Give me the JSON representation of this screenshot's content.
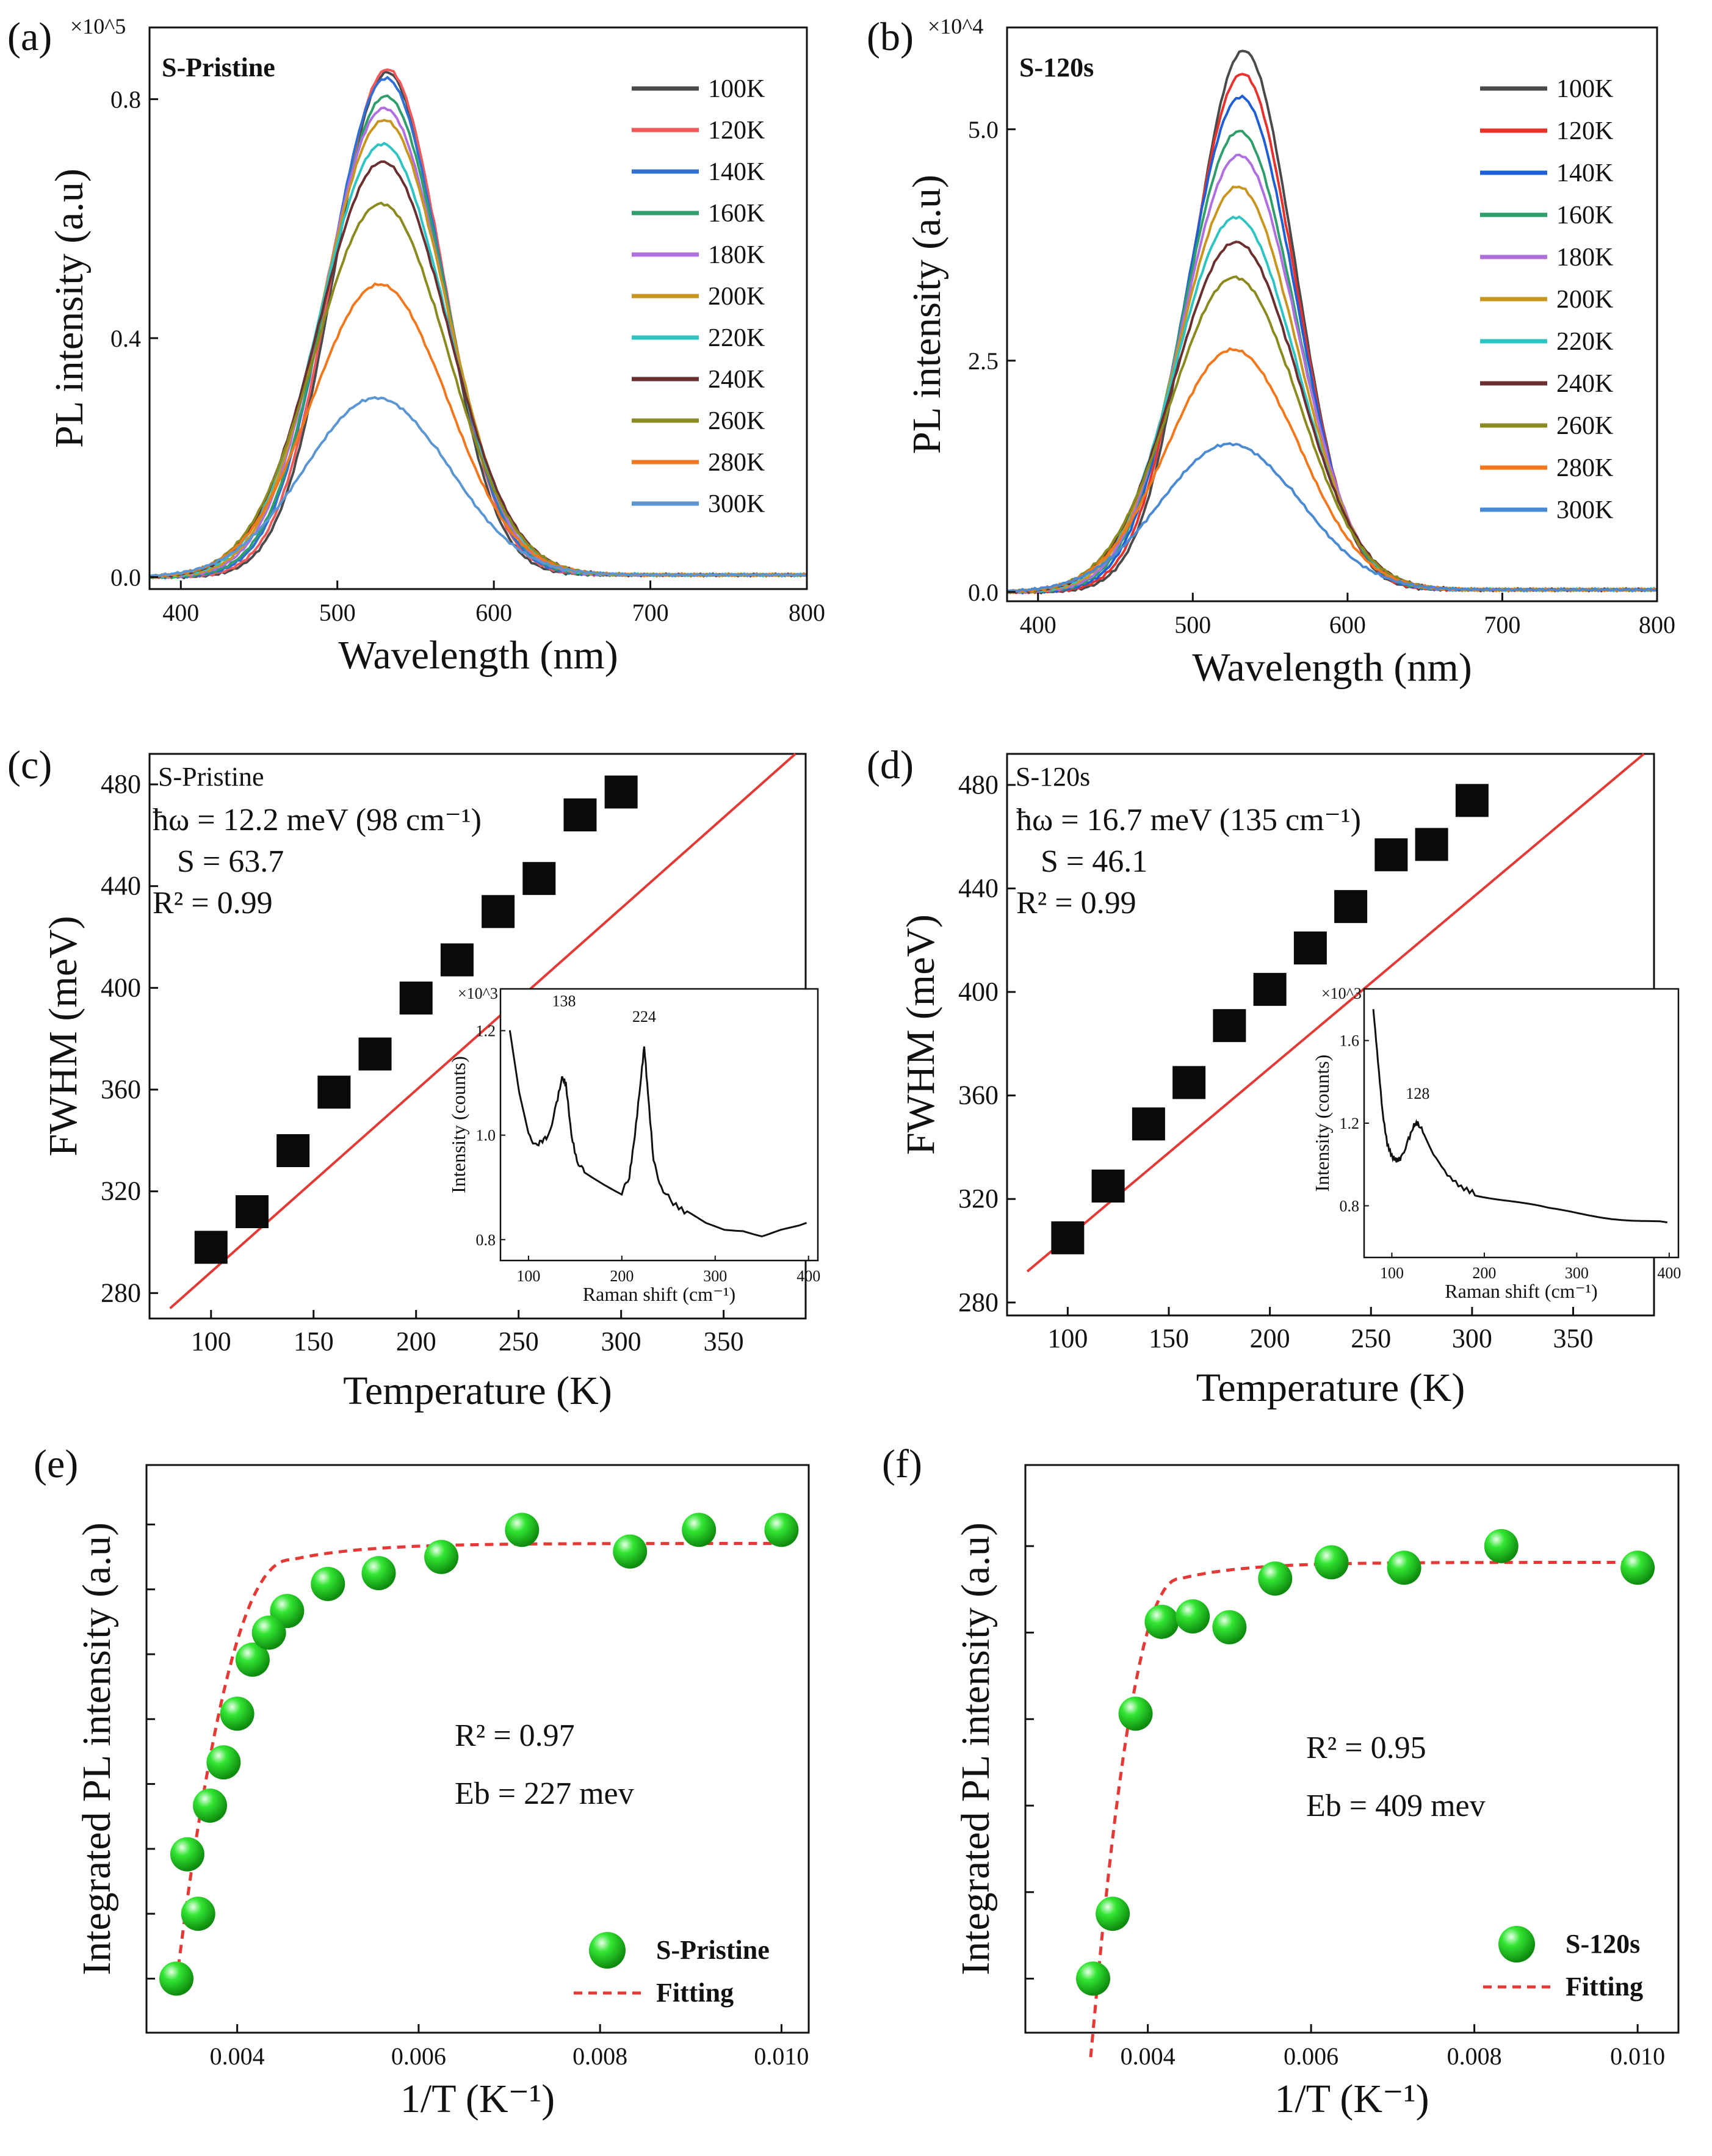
{
  "figure": {
    "panels": [
      "(a)",
      "(b)",
      "(c)",
      "(d)",
      "(e)",
      "(f)"
    ]
  },
  "chart_data": [
    {
      "panel": "(a)",
      "type": "line",
      "sample_label": "S-Pristine",
      "xlabel": "Wavelength (nm)",
      "ylabel": "PL intensity (a.u)",
      "y_multiplier": "×10^5",
      "xlim": [
        380,
        800
      ],
      "ylim": [
        -0.02,
        0.92
      ],
      "xticks": [
        "400",
        "500",
        "600",
        "700",
        "800"
      ],
      "xtick_values": [
        400,
        500,
        600,
        700,
        800
      ],
      "yticks": [
        "0.0",
        "0.4",
        "0.8"
      ],
      "ytick_values": [
        0.0,
        0.4,
        0.8
      ],
      "center_nm": 530,
      "series": [
        {
          "name": "100K",
          "color": "#4a4a4a",
          "peak": 0.845,
          "center": 532,
          "sigma": 34
        },
        {
          "name": "120K",
          "color": "#f25a5a",
          "peak": 0.85,
          "center": 532,
          "sigma": 35
        },
        {
          "name": "140K",
          "color": "#2f6fd6",
          "peak": 0.835,
          "center": 531,
          "sigma": 36
        },
        {
          "name": "160K",
          "color": "#2e9e6a",
          "peak": 0.805,
          "center": 531,
          "sigma": 37
        },
        {
          "name": "180K",
          "color": "#b06fe0",
          "peak": 0.785,
          "center": 530,
          "sigma": 38
        },
        {
          "name": "200K",
          "color": "#c8961e",
          "peak": 0.765,
          "center": 530,
          "sigma": 39
        },
        {
          "name": "220K",
          "color": "#2ec4c4",
          "peak": 0.725,
          "center": 529,
          "sigma": 40
        },
        {
          "name": "240K",
          "color": "#6b2f2f",
          "peak": 0.695,
          "center": 529,
          "sigma": 41
        },
        {
          "name": "260K",
          "color": "#8a8a1e",
          "peak": 0.625,
          "center": 528,
          "sigma": 42
        },
        {
          "name": "280K",
          "color": "#f2781e",
          "peak": 0.49,
          "center": 527,
          "sigma": 43
        },
        {
          "name": "300K",
          "color": "#5a96d2",
          "peak": 0.3,
          "center": 525,
          "sigma": 46
        }
      ]
    },
    {
      "panel": "(b)",
      "type": "line",
      "sample_label": "S-120s",
      "xlabel": "Wavelength (nm)",
      "ylabel": "PL intensity (a.u)",
      "y_multiplier": "×10^4",
      "xlim": [
        380,
        800
      ],
      "ylim": [
        -0.1,
        6.1
      ],
      "xticks": [
        "400",
        "500",
        "600",
        "700",
        "800"
      ],
      "xtick_values": [
        400,
        500,
        600,
        700,
        800
      ],
      "yticks": [
        "0.0",
        "2.5",
        "5.0"
      ],
      "ytick_values": [
        0.0,
        2.5,
        5.0
      ],
      "series": [
        {
          "name": "100K",
          "color": "#4a4a4a",
          "peak": 5.85,
          "center": 533,
          "sigma": 33
        },
        {
          "name": "120K",
          "color": "#e8322d",
          "peak": 5.6,
          "center": 532,
          "sigma": 34
        },
        {
          "name": "140K",
          "color": "#1f5fd6",
          "peak": 5.35,
          "center": 531,
          "sigma": 35
        },
        {
          "name": "160K",
          "color": "#2e9e6a",
          "peak": 4.98,
          "center": 530,
          "sigma": 36
        },
        {
          "name": "180K",
          "color": "#b06fe0",
          "peak": 4.72,
          "center": 530,
          "sigma": 37
        },
        {
          "name": "200K",
          "color": "#c8961e",
          "peak": 4.38,
          "center": 529,
          "sigma": 38
        },
        {
          "name": "220K",
          "color": "#2ec4c4",
          "peak": 4.05,
          "center": 528,
          "sigma": 39
        },
        {
          "name": "240K",
          "color": "#6b2f2f",
          "peak": 3.78,
          "center": 528,
          "sigma": 40
        },
        {
          "name": "260K",
          "color": "#8a8a1e",
          "peak": 3.4,
          "center": 527,
          "sigma": 41
        },
        {
          "name": "280K",
          "color": "#f2781e",
          "peak": 2.62,
          "center": 526,
          "sigma": 42
        },
        {
          "name": "300K",
          "color": "#4a8ad2",
          "peak": 1.6,
          "center": 524,
          "sigma": 45
        }
      ]
    },
    {
      "panel": "(c)",
      "type": "scatter",
      "sample_label": "S-Pristine",
      "xlabel": "Temperature (K)",
      "ylabel": "FWHM (meV)",
      "xlim": [
        70,
        390
      ],
      "ylim": [
        270,
        492
      ],
      "xticks": [
        "100",
        "150",
        "200",
        "250",
        "300",
        "350"
      ],
      "xtick_values": [
        100,
        150,
        200,
        250,
        300,
        350
      ],
      "yticks": [
        "280",
        "320",
        "360",
        "400",
        "440",
        "480"
      ],
      "ytick_values": [
        280,
        320,
        360,
        400,
        440,
        480
      ],
      "x": [
        100,
        120,
        140,
        160,
        180,
        200,
        220,
        240,
        260,
        280,
        300
      ],
      "y": [
        298,
        312,
        336,
        359,
        374,
        396,
        411,
        430,
        443,
        468,
        477
      ],
      "fit_line": {
        "x": [
          80,
          385
        ],
        "y": [
          274,
          492
        ],
        "color": "#e53935"
      },
      "annotations": [
        "ħω = 12.2 meV (98 cm⁻¹)",
        "S = 63.7",
        "R² = 0.99"
      ],
      "inset": {
        "xlabel": "Raman shift (cm⁻¹)",
        "ylabel": "Intensity (counts)",
        "y_multiplier": "×10^3",
        "xlim": [
          70,
          410
        ],
        "ylim": [
          0.76,
          1.28
        ],
        "xticks": [
          "100",
          "200",
          "300",
          "400"
        ],
        "xtick_values": [
          100,
          200,
          300,
          400
        ],
        "yticks": [
          "0.8",
          "1.0",
          "1.2"
        ],
        "ytick_values": [
          0.8,
          1.0,
          1.2
        ],
        "peak_labels": [
          "138",
          "224"
        ],
        "peak_positions": [
          138,
          224
        ],
        "curve_x": [
          80,
          90,
          100,
          108,
          115,
          122,
          130,
          136,
          140,
          146,
          152,
          160,
          170,
          180,
          190,
          200,
          208,
          214,
          220,
          224,
          228,
          234,
          242,
          255,
          270,
          290,
          310,
          330,
          350,
          370,
          390,
          400
        ],
        "curve_y": [
          1.2,
          1.08,
          1.0,
          0.98,
          0.99,
          1.0,
          1.06,
          1.11,
          1.1,
          1.0,
          0.95,
          0.93,
          0.92,
          0.91,
          0.9,
          0.89,
          0.92,
          1.0,
          1.1,
          1.17,
          1.08,
          0.95,
          0.9,
          0.87,
          0.85,
          0.83,
          0.82,
          0.82,
          0.81,
          0.82,
          0.825,
          0.83
        ]
      }
    },
    {
      "panel": "(d)",
      "type": "scatter",
      "sample_label": "S-120s",
      "xlabel": "Temperature (K)",
      "ylabel": "FWHM (meV)",
      "xlim": [
        70,
        390
      ],
      "ylim": [
        275,
        492
      ],
      "xticks": [
        "100",
        "150",
        "200",
        "250",
        "300",
        "350"
      ],
      "xtick_values": [
        100,
        150,
        200,
        250,
        300,
        350
      ],
      "yticks": [
        "280",
        "320",
        "360",
        "400",
        "440",
        "480"
      ],
      "ytick_values": [
        280,
        320,
        360,
        400,
        440,
        480
      ],
      "x": [
        100,
        120,
        140,
        160,
        180,
        200,
        220,
        240,
        260,
        280,
        300
      ],
      "y": [
        305,
        325,
        349,
        365,
        387,
        401,
        417,
        433,
        453,
        457,
        474
      ],
      "fit_line": {
        "x": [
          80,
          385
        ],
        "y": [
          292,
          492
        ],
        "color": "#e53935"
      },
      "annotations": [
        "ħω = 16.7 meV (135 cm⁻¹)",
        "S = 46.1",
        "R² = 0.99"
      ],
      "inset": {
        "xlabel": "Raman shift (cm⁻¹)",
        "ylabel": "Intensity (counts)",
        "y_multiplier": "×10^3",
        "xlim": [
          70,
          410
        ],
        "ylim": [
          0.55,
          1.85
        ],
        "xticks": [
          "100",
          "200",
          "300",
          "400"
        ],
        "xtick_values": [
          100,
          200,
          300,
          400
        ],
        "yticks": [
          "0.8",
          "1.2",
          "1.6"
        ],
        "ytick_values": [
          0.8,
          1.2,
          1.6
        ],
        "peak_labels": [
          "128"
        ],
        "peak_positions": [
          128
        ],
        "curve_x": [
          80,
          85,
          90,
          95,
          100,
          105,
          110,
          118,
          124,
          128,
          135,
          145,
          160,
          175,
          190,
          210,
          230,
          250,
          270,
          290,
          310,
          330,
          350,
          370,
          390,
          400
        ],
        "curve_y": [
          1.75,
          1.5,
          1.25,
          1.1,
          1.04,
          1.02,
          1.03,
          1.12,
          1.19,
          1.2,
          1.15,
          1.05,
          0.95,
          0.89,
          0.86,
          0.84,
          0.82,
          0.8,
          0.78,
          0.77,
          0.76,
          0.75,
          0.74,
          0.73,
          0.72,
          0.71
        ]
      }
    },
    {
      "panel": "(e)",
      "type": "scatter",
      "sample_label": "S-Pristine",
      "xlabel": "1/T (K⁻¹)",
      "ylabel": "Integrated PL intensity (a.u)",
      "xlim": [
        0.003,
        0.0103
      ],
      "ylim": [
        0.0,
        1.05
      ],
      "xticks": [
        "0.004",
        "0.006",
        "0.008",
        "0.010"
      ],
      "xtick_values": [
        0.004,
        0.006,
        0.008,
        0.01
      ],
      "y_tick_positions": [
        0.1,
        0.22,
        0.34,
        0.46,
        0.58,
        0.7,
        0.82,
        0.94
      ],
      "x": [
        0.00333,
        0.00357,
        0.00385,
        0.00417,
        0.00455,
        0.005,
        0.00556,
        0.00625,
        0.00714,
        0.00833,
        0.00909,
        0.01,
        0.00345,
        0.0037,
        0.004,
        0.00435
      ],
      "y": [
        0.1,
        0.22,
        0.5,
        0.69,
        0.78,
        0.83,
        0.85,
        0.88,
        0.93,
        0.89,
        0.93,
        0.93,
        0.33,
        0.42,
        0.59,
        0.74
      ],
      "points_order_note": "markers",
      "fit": {
        "plateau": 0.875,
        "knee": 0.0046,
        "start": 0.00335,
        "start_y": 0.12
      },
      "legend": [
        "S-Pristine",
        "Fitting"
      ],
      "annotations": [
        "R² = 0.97",
        "Eb = 227 mev"
      ]
    },
    {
      "panel": "(f)",
      "type": "scatter",
      "sample_label": "S-120s",
      "xlabel": "1/T (K⁻¹)",
      "ylabel": "Integrated PL intensity (a.u)",
      "xlim": [
        0.0025,
        0.0105
      ],
      "ylim": [
        0.0,
        1.05
      ],
      "xticks": [
        "0.004",
        "0.006",
        "0.008",
        "0.010"
      ],
      "xtick_values": [
        0.004,
        0.006,
        0.008,
        0.01
      ],
      "y_tick_positions": [
        0.1,
        0.26,
        0.42,
        0.58,
        0.74,
        0.9
      ],
      "x": [
        0.00333,
        0.00357,
        0.00385,
        0.00417,
        0.00455,
        0.005,
        0.00556,
        0.00625,
        0.00714,
        0.00833,
        0.01
      ],
      "y": [
        0.1,
        0.22,
        0.59,
        0.76,
        0.77,
        0.75,
        0.84,
        0.87,
        0.86,
        0.9,
        0.86
      ],
      "fit": {
        "plateau": 0.84,
        "knee": 0.0044,
        "start": 0.0033,
        "start_y": -0.05
      },
      "legend": [
        "S-120s",
        "Fitting"
      ],
      "annotations": [
        "R² = 0.95",
        "Eb = 409 mev"
      ]
    }
  ]
}
